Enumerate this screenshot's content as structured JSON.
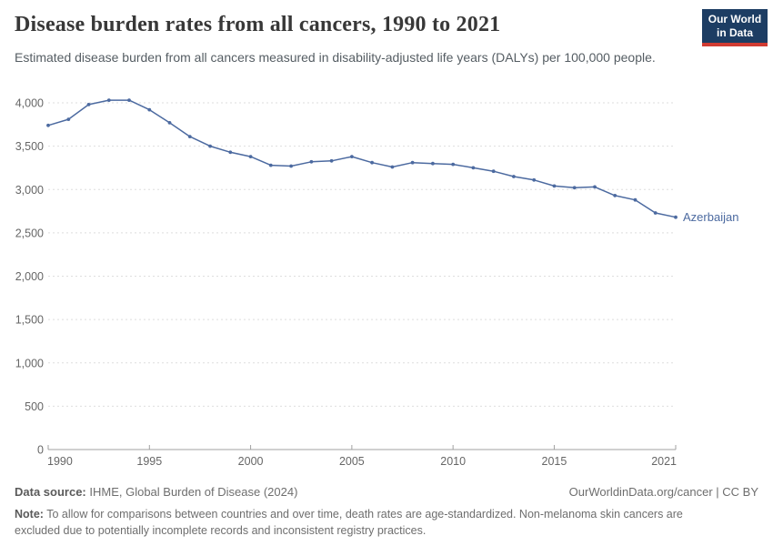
{
  "header": {
    "title": "Disease burden rates from all cancers, 1990 to 2021",
    "subtitle": "Estimated disease burden from all cancers measured in disability-adjusted life years (DALYs) per 100,000 people.",
    "logo": {
      "line1": "Our World",
      "line2": "in Data",
      "bg_color": "#1d3d63",
      "accent_color": "#d13b32"
    }
  },
  "chart_data": {
    "type": "line",
    "title": "Disease burden rates from all cancers, 1990 to 2021",
    "xlabel": "",
    "ylabel": "DALYs per 100,000 people",
    "x": [
      1990,
      1991,
      1992,
      1993,
      1994,
      1995,
      1996,
      1997,
      1998,
      1999,
      2000,
      2001,
      2002,
      2003,
      2004,
      2005,
      2006,
      2007,
      2008,
      2009,
      2010,
      2011,
      2012,
      2013,
      2014,
      2015,
      2016,
      2017,
      2018,
      2019,
      2020,
      2021
    ],
    "series": [
      {
        "name": "Azerbaijan",
        "values": [
          3740,
          3810,
          3980,
          4030,
          4030,
          3920,
          3770,
          3610,
          3500,
          3430,
          3380,
          3280,
          3270,
          3320,
          3330,
          3380,
          3310,
          3260,
          3310,
          3300,
          3290,
          3250,
          3210,
          3150,
          3110,
          3040,
          3020,
          3030,
          2930,
          2880,
          2730,
          2680
        ]
      }
    ],
    "ylim": [
      0,
      4000
    ],
    "ytick_step": 500,
    "xticks": [
      1990,
      1995,
      2000,
      2005,
      2010,
      2015,
      2021
    ],
    "grid": "horizontal-dashed",
    "legend_position": "end-of-line-label",
    "end_label": "Azerbaijan"
  },
  "colors": {
    "line": "#4c6aa0",
    "grid": "#dedede",
    "axis": "#a1a1a1",
    "tick_text": "#666666"
  },
  "footer": {
    "datasource_label": "Data source:",
    "datasource_value": " IHME, Global Burden of Disease (2024)",
    "rights": "OurWorldinData.org/cancer | CC BY",
    "note_label": "Note:",
    "note_value": " To allow for comparisons between countries and over time, death rates are age-standardized. Non-melanoma skin cancers are excluded due to potentially incomplete records and inconsistent registry practices."
  }
}
